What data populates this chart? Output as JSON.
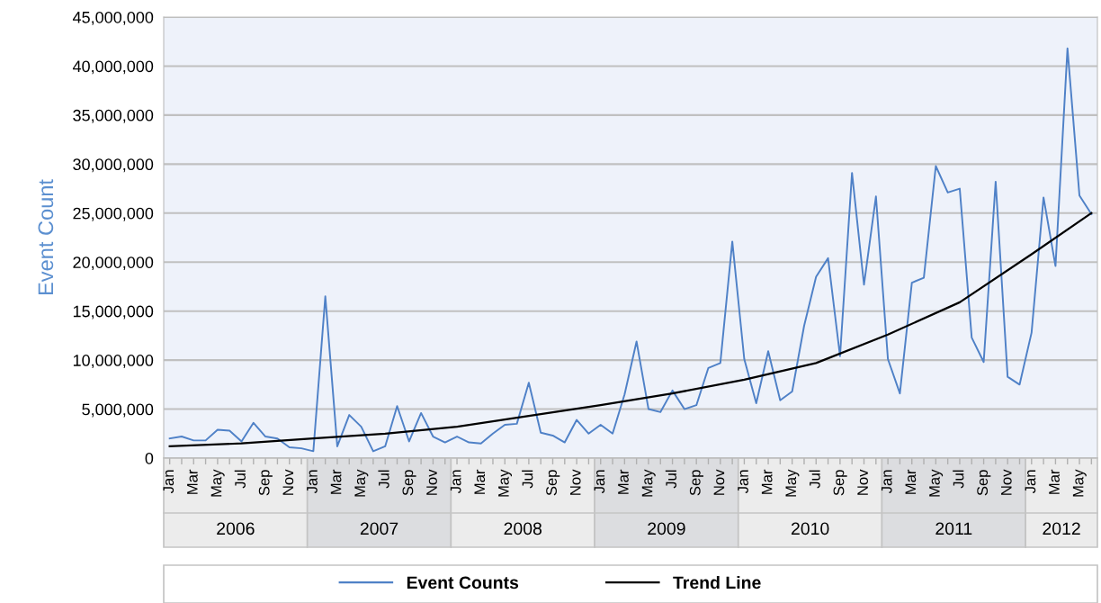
{
  "chart_data": {
    "type": "line",
    "ylabel": "Event Count",
    "x": [
      "2006-01",
      "2006-02",
      "2006-03",
      "2006-04",
      "2006-05",
      "2006-06",
      "2006-07",
      "2006-08",
      "2006-09",
      "2006-10",
      "2006-11",
      "2006-12",
      "2007-01",
      "2007-02",
      "2007-03",
      "2007-04",
      "2007-05",
      "2007-06",
      "2007-07",
      "2007-08",
      "2007-09",
      "2007-10",
      "2007-11",
      "2007-12",
      "2008-01",
      "2008-02",
      "2008-03",
      "2008-04",
      "2008-05",
      "2008-06",
      "2008-07",
      "2008-08",
      "2008-09",
      "2008-10",
      "2008-11",
      "2008-12",
      "2009-01",
      "2009-02",
      "2009-03",
      "2009-04",
      "2009-05",
      "2009-06",
      "2009-07",
      "2009-08",
      "2009-09",
      "2009-10",
      "2009-11",
      "2009-12",
      "2010-01",
      "2010-02",
      "2010-03",
      "2010-04",
      "2010-05",
      "2010-06",
      "2010-07",
      "2010-08",
      "2010-09",
      "2010-10",
      "2010-11",
      "2010-12",
      "2011-01",
      "2011-02",
      "2011-03",
      "2011-04",
      "2011-05",
      "2011-06",
      "2011-07",
      "2011-08",
      "2011-09",
      "2011-10",
      "2011-11",
      "2011-12",
      "2012-01",
      "2012-02",
      "2012-03",
      "2012-04",
      "2012-05",
      "2012-06"
    ],
    "series": [
      {
        "name": "Event Counts",
        "color": "#4f81c7",
        "values": [
          2000000,
          2200000,
          1800000,
          1800000,
          2900000,
          2800000,
          1700000,
          3600000,
          2200000,
          2000000,
          1100000,
          1000000,
          700000,
          16500000,
          1200000,
          4400000,
          3200000,
          700000,
          1200000,
          5300000,
          1700000,
          4600000,
          2200000,
          1600000,
          2200000,
          1600000,
          1500000,
          2500000,
          3400000,
          3500000,
          7700000,
          2600000,
          2300000,
          1600000,
          3900000,
          2500000,
          3400000,
          2500000,
          6500000,
          11900000,
          5000000,
          4700000,
          6900000,
          5000000,
          5400000,
          9200000,
          9700000,
          22100000,
          10100000,
          5600000,
          10900000,
          5900000,
          6800000,
          13500000,
          18500000,
          20400000,
          10400000,
          29100000,
          17700000,
          26700000,
          10100000,
          6600000,
          17900000,
          18400000,
          29800000,
          27100000,
          27500000,
          12300000,
          9800000,
          28200000,
          8300000,
          7500000,
          12800000,
          26600000,
          19600000,
          41800000,
          26800000,
          24900000
        ]
      },
      {
        "name": "Trend Line",
        "color": "#000000",
        "x": [
          "2006-01",
          "2006-07",
          "2007-01",
          "2007-07",
          "2008-01",
          "2008-07",
          "2009-01",
          "2009-07",
          "2010-01",
          "2010-07",
          "2011-01",
          "2011-07",
          "2012-01",
          "2012-06"
        ],
        "values": [
          1200000,
          1500000,
          2000000,
          2500000,
          3200000,
          4300000,
          5400000,
          6600000,
          8000000,
          9700000,
          12600000,
          15900000,
          20800000,
          25000000
        ]
      }
    ],
    "xlim": [
      "2005-12-16",
      "2012-06-16"
    ],
    "xticks": [
      {
        "value": "2006-01",
        "label": "Jan"
      },
      {
        "value": "2006-02",
        "label": null
      },
      {
        "value": "2006-03",
        "label": "Mar"
      },
      {
        "value": "2006-04",
        "label": null
      },
      {
        "value": "2006-05",
        "label": "May"
      },
      {
        "value": "2006-06",
        "label": null
      },
      {
        "value": "2006-07",
        "label": "Jul"
      },
      {
        "value": "2006-08",
        "label": null
      },
      {
        "value": "2006-09",
        "label": "Sep"
      },
      {
        "value": "2006-10",
        "label": null
      },
      {
        "value": "2006-11",
        "label": "Nov"
      },
      {
        "value": "2006-12",
        "label": null
      },
      {
        "value": "2007-01",
        "label": "Jan"
      },
      {
        "value": "2007-02",
        "label": null
      },
      {
        "value": "2007-03",
        "label": "Mar"
      },
      {
        "value": "2007-04",
        "label": null
      },
      {
        "value": "2007-05",
        "label": "May"
      },
      {
        "value": "2007-06",
        "label": null
      },
      {
        "value": "2007-07",
        "label": "Jul"
      },
      {
        "value": "2007-08",
        "label": null
      },
      {
        "value": "2007-09",
        "label": "Sep"
      },
      {
        "value": "2007-10",
        "label": null
      },
      {
        "value": "2007-11",
        "label": "Nov"
      },
      {
        "value": "2007-12",
        "label": null
      },
      {
        "value": "2008-01",
        "label": "Jan"
      },
      {
        "value": "2008-02",
        "label": null
      },
      {
        "value": "2008-03",
        "label": "Mar"
      },
      {
        "value": "2008-04",
        "label": null
      },
      {
        "value": "2008-05",
        "label": "May"
      },
      {
        "value": "2008-06",
        "label": null
      },
      {
        "value": "2008-07",
        "label": "Jul"
      },
      {
        "value": "2008-08",
        "label": null
      },
      {
        "value": "2008-09",
        "label": "Sep"
      },
      {
        "value": "2008-10",
        "label": null
      },
      {
        "value": "2008-11",
        "label": "Nov"
      },
      {
        "value": "2008-12",
        "label": null
      },
      {
        "value": "2009-01",
        "label": "Jan"
      },
      {
        "value": "2009-02",
        "label": null
      },
      {
        "value": "2009-03",
        "label": "Mar"
      },
      {
        "value": "2009-04",
        "label": null
      },
      {
        "value": "2009-05",
        "label": "May"
      },
      {
        "value": "2009-06",
        "label": null
      },
      {
        "value": "2009-07",
        "label": "Jul"
      },
      {
        "value": "2009-08",
        "label": null
      },
      {
        "value": "2009-09",
        "label": "Sep"
      },
      {
        "value": "2009-10",
        "label": null
      },
      {
        "value": "2009-11",
        "label": "Nov"
      },
      {
        "value": "2009-12",
        "label": null
      },
      {
        "value": "2010-01",
        "label": "Jan"
      },
      {
        "value": "2010-02",
        "label": null
      },
      {
        "value": "2010-03",
        "label": "Mar"
      },
      {
        "value": "2010-04",
        "label": null
      },
      {
        "value": "2010-05",
        "label": "May"
      },
      {
        "value": "2010-06",
        "label": null
      },
      {
        "value": "2010-07",
        "label": "Jul"
      },
      {
        "value": "2010-08",
        "label": null
      },
      {
        "value": "2010-09",
        "label": "Sep"
      },
      {
        "value": "2010-10",
        "label": null
      },
      {
        "value": "2010-11",
        "label": "Nov"
      },
      {
        "value": "2010-12",
        "label": null
      },
      {
        "value": "2011-01",
        "label": "Jan"
      },
      {
        "value": "2011-02",
        "label": null
      },
      {
        "value": "2011-03",
        "label": "Mar"
      },
      {
        "value": "2011-04",
        "label": null
      },
      {
        "value": "2011-05",
        "label": "May"
      },
      {
        "value": "2011-06",
        "label": null
      },
      {
        "value": "2011-07",
        "label": "Jul"
      },
      {
        "value": "2011-08",
        "label": null
      },
      {
        "value": "2011-09",
        "label": "Sep"
      },
      {
        "value": "2011-10",
        "label": null
      },
      {
        "value": "2011-11",
        "label": "Nov"
      },
      {
        "value": "2011-12",
        "label": null
      },
      {
        "value": "2012-01",
        "label": "Jan"
      },
      {
        "value": "2012-02",
        "label": null
      },
      {
        "value": "2012-03",
        "label": "Mar"
      },
      {
        "value": "2012-04",
        "label": null
      },
      {
        "value": "2012-05",
        "label": "May"
      },
      {
        "value": "2012-06",
        "label": null
      }
    ],
    "ylim": [
      0,
      45000000
    ],
    "yticks": [
      {
        "value": 0,
        "label": "0"
      },
      {
        "value": 5000000,
        "label": "5,000,000"
      },
      {
        "value": 10000000,
        "label": "10,000,000"
      },
      {
        "value": 15000000,
        "label": "15,000,000"
      },
      {
        "value": 20000000,
        "label": "20,000,000"
      },
      {
        "value": 25000000,
        "label": "25,000,000"
      },
      {
        "value": 30000000,
        "label": "30,000,000"
      },
      {
        "value": 35000000,
        "label": "35,000,000"
      },
      {
        "value": 40000000,
        "label": "40,000,000"
      },
      {
        "value": 45000000,
        "label": "45,000,000"
      }
    ],
    "annotations": [
      "2006",
      "2007",
      "2008",
      "2009",
      "2010",
      "2011",
      "2012"
    ],
    "grid": "y",
    "legend": "bottom",
    "marker": "none",
    "line_style": "solid"
  }
}
